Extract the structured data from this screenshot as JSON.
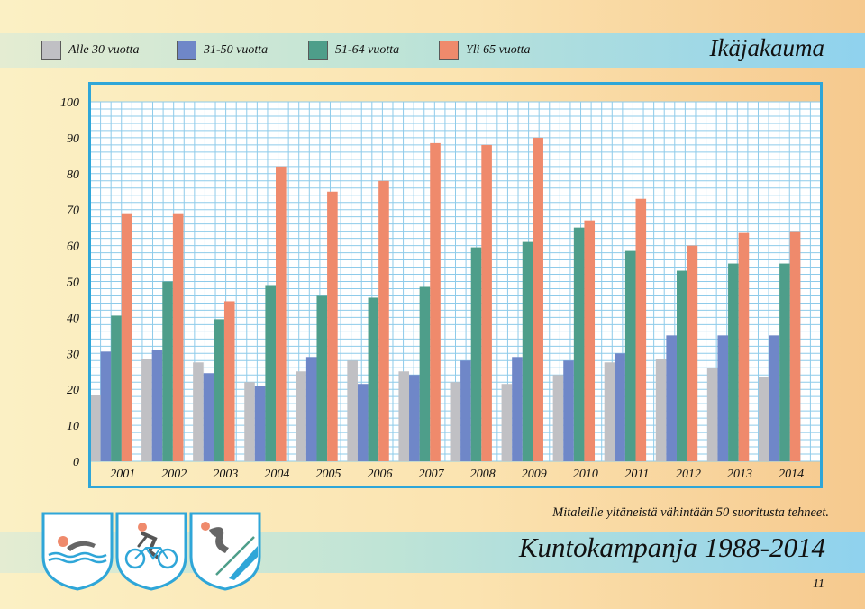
{
  "header": {
    "title": "Ikäjakauma"
  },
  "legend": [
    {
      "label": "Alle 30 vuotta",
      "color": "#c0c0c4"
    },
    {
      "label": "31-50 vuotta",
      "color": "#6f87c8"
    },
    {
      "label": "51-64 vuotta",
      "color": "#4e9e8a"
    },
    {
      "label": "Yli 65 vuotta",
      "color": "#ef8a6c"
    }
  ],
  "chart_data": {
    "type": "bar",
    "categories": [
      "2001",
      "2002",
      "2003",
      "2004",
      "2005",
      "2006",
      "2007",
      "2008",
      "2009",
      "2010",
      "2011",
      "2012",
      "2013",
      "2014"
    ],
    "series": [
      {
        "name": "Alle 30 vuotta",
        "color": "#c0c0c4",
        "values": [
          18.5,
          28.5,
          27.5,
          22,
          25,
          28,
          25,
          22,
          21.5,
          24,
          27.5,
          28.5,
          26,
          23.5
        ]
      },
      {
        "name": "31-50 vuotta",
        "color": "#6f87c8",
        "values": [
          30.5,
          31,
          24.5,
          21,
          29,
          21.5,
          24,
          28,
          29,
          28,
          30,
          35,
          35,
          35
        ]
      },
      {
        "name": "51-64 vuotta",
        "color": "#4e9e8a",
        "values": [
          40.5,
          50,
          39.5,
          49,
          46,
          45.5,
          48.5,
          59.5,
          61,
          65,
          58.5,
          53,
          55,
          55
        ]
      },
      {
        "name": "Yli 65 vuotta",
        "color": "#ef8a6c",
        "values": [
          69,
          69,
          44.5,
          82,
          75,
          78,
          88.5,
          88,
          90,
          67,
          73,
          60,
          63.5,
          64
        ]
      }
    ],
    "yticks": [
      0,
      10,
      20,
      30,
      40,
      50,
      60,
      70,
      80,
      90,
      100
    ],
    "ylim": [
      0,
      100
    ],
    "grid": true,
    "legend_position": "top",
    "grid_color": "#8ecbea"
  },
  "footer": {
    "note": "Mitaleille yltäneistä vähintään 50 suoritusta tehneet.",
    "campaign_title": "Kuntokampanja 1988-2014",
    "page_number": "11"
  },
  "emblems": [
    {
      "icon": "swimmer-icon"
    },
    {
      "icon": "cyclist-icon"
    },
    {
      "icon": "skier-icon"
    }
  ]
}
